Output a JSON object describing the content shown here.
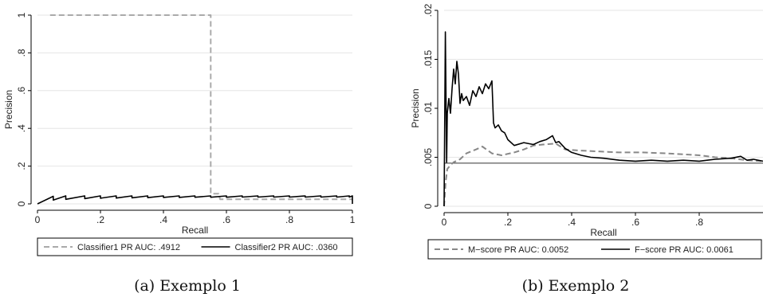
{
  "chart_data": [
    {
      "type": "line",
      "caption": "(a) Exemplo 1",
      "xlabel": "Recall",
      "ylabel": "Precision",
      "xlim": [
        0,
        1
      ],
      "ylim": [
        0,
        1
      ],
      "xticks": [
        0,
        0.2,
        0.4,
        0.6,
        0.8,
        1
      ],
      "xtick_labels": [
        "0",
        ".2",
        ".4",
        ".6",
        ".8",
        "1"
      ],
      "yticks": [
        0,
        0.2,
        0.4,
        0.6,
        0.8,
        1
      ],
      "ytick_labels": [
        "0",
        ".2",
        ".4",
        ".6",
        ".8",
        "1"
      ],
      "grid": true,
      "legend_position": "bottom",
      "series": [
        {
          "name": "Classifier1 PR AUC: .4912",
          "color": "#aaaaaa",
          "dash": "dashed",
          "x": [
            0.04,
            0.55,
            0.55,
            0.56,
            0.575,
            0.58,
            0.6,
            1.0
          ],
          "y": [
            1.0,
            1.0,
            0.054,
            0.054,
            0.054,
            0.024,
            0.024,
            0.024
          ]
        },
        {
          "name": "Classifier2 PR AUC: .0360",
          "color": "#000000",
          "dash": "solid",
          "sawtooth": true,
          "start": [
            0,
            0
          ],
          "end": [
            1.0,
            0.0
          ],
          "teeth_x": [
            0.05,
            0.09,
            0.15,
            0.2,
            0.25,
            0.3,
            0.35,
            0.4,
            0.45,
            0.5,
            0.55,
            0.6,
            0.65,
            0.7,
            0.75,
            0.8,
            0.85,
            0.9,
            0.95,
            0.99
          ],
          "teeth_low": [
            0.02,
            0.024,
            0.028,
            0.03,
            0.031,
            0.032,
            0.033,
            0.034,
            0.034,
            0.035,
            0.035,
            0.035,
            0.036,
            0.036,
            0.036,
            0.036,
            0.036,
            0.036,
            0.036,
            0.036
          ],
          "teeth_high": [
            0.04,
            0.042,
            0.042,
            0.042,
            0.042,
            0.042,
            0.042,
            0.042,
            0.042,
            0.042,
            0.042,
            0.042,
            0.042,
            0.042,
            0.042,
            0.042,
            0.042,
            0.042,
            0.042,
            0.042
          ]
        }
      ]
    },
    {
      "type": "line",
      "caption": "(b) Exemplo 2",
      "xlabel": "Recall",
      "ylabel": "Precision",
      "xlim": [
        0,
        1
      ],
      "ylim": [
        0,
        0.02
      ],
      "xticks": [
        0,
        0.2,
        0.4,
        0.6,
        0.8
      ],
      "xtick_labels": [
        "0",
        ".2",
        ".4",
        ".6",
        ".8"
      ],
      "yticks": [
        0,
        0.005,
        0.01,
        0.015,
        0.02
      ],
      "ytick_labels": [
        "0",
        ".005",
        ".01",
        ".015",
        ".02"
      ],
      "grid": true,
      "legend_position": "bottom",
      "baseline": 0.0044,
      "series": [
        {
          "name": "M−score PR AUC: 0.0052",
          "color": "#888888",
          "dash": "dashed",
          "x": [
            0.0,
            0.005,
            0.01,
            0.02,
            0.03,
            0.05,
            0.07,
            0.1,
            0.12,
            0.15,
            0.18,
            0.22,
            0.25,
            0.28,
            0.31,
            0.35,
            0.38,
            0.42,
            0.48,
            0.55,
            0.62,
            0.7,
            0.75,
            0.8,
            0.85,
            0.9,
            0.95,
            1.0
          ],
          "y": [
            0.0,
            0.0025,
            0.0038,
            0.0042,
            0.0045,
            0.0048,
            0.0054,
            0.0058,
            0.0061,
            0.0054,
            0.0052,
            0.0055,
            0.0058,
            0.0062,
            0.0063,
            0.0064,
            0.0058,
            0.0057,
            0.0056,
            0.0055,
            0.0055,
            0.0054,
            0.0053,
            0.0052,
            0.005,
            0.0049,
            0.0047,
            0.0046
          ]
        },
        {
          "name": "F−score PR AUC: 0.0061",
          "color": "#000000",
          "dash": "solid",
          "x": [
            0.0,
            0.004,
            0.008,
            0.01,
            0.015,
            0.02,
            0.025,
            0.03,
            0.035,
            0.04,
            0.045,
            0.05,
            0.055,
            0.06,
            0.07,
            0.08,
            0.09,
            0.1,
            0.11,
            0.12,
            0.13,
            0.14,
            0.15,
            0.155,
            0.16,
            0.17,
            0.18,
            0.19,
            0.2,
            0.22,
            0.25,
            0.28,
            0.3,
            0.32,
            0.34,
            0.35,
            0.36,
            0.38,
            0.4,
            0.43,
            0.46,
            0.5,
            0.55,
            0.6,
            0.65,
            0.7,
            0.75,
            0.8,
            0.85,
            0.9,
            0.93,
            0.95,
            0.97,
            1.0
          ],
          "y": [
            0.0,
            0.0178,
            0.0045,
            0.0095,
            0.011,
            0.0095,
            0.012,
            0.014,
            0.0125,
            0.0148,
            0.0135,
            0.0105,
            0.0115,
            0.0108,
            0.0112,
            0.0103,
            0.0118,
            0.0112,
            0.0122,
            0.0115,
            0.0125,
            0.012,
            0.0128,
            0.0085,
            0.008,
            0.0083,
            0.0077,
            0.0075,
            0.0068,
            0.0062,
            0.0065,
            0.0063,
            0.0066,
            0.0068,
            0.0072,
            0.0065,
            0.0066,
            0.0059,
            0.0055,
            0.0052,
            0.005,
            0.0049,
            0.0047,
            0.0046,
            0.0047,
            0.0046,
            0.0047,
            0.0046,
            0.0048,
            0.0049,
            0.0051,
            0.0047,
            0.0048,
            0.0046
          ]
        }
      ]
    }
  ]
}
